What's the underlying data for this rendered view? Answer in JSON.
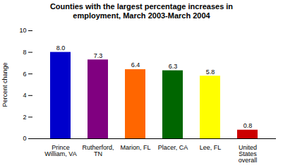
{
  "chart_data": {
    "type": "bar",
    "title": "Counties with the largest percentage increases in\nemployment, March 2003-March 2004",
    "categories": [
      "Prince\nWilliam, VA",
      "Rutherford,\nTN",
      "Marion, FL",
      "Placer, CA",
      "Lee, FL",
      "United\nStates\noverall"
    ],
    "values": [
      8.0,
      7.3,
      6.4,
      6.3,
      5.8,
      0.8
    ],
    "value_labels": [
      "8.0",
      "7.3",
      "6.4",
      "6.3",
      "5.8",
      "0.8"
    ],
    "colors": [
      "#0000cc",
      "#800080",
      "#ff6600",
      "#006600",
      "#ffff00",
      "#cc0000"
    ],
    "ylabel": "Percent change",
    "ylim": [
      0,
      10
    ],
    "yticks": [
      0,
      2,
      4,
      6,
      8,
      10
    ],
    "grid": false,
    "data_labels": true
  }
}
